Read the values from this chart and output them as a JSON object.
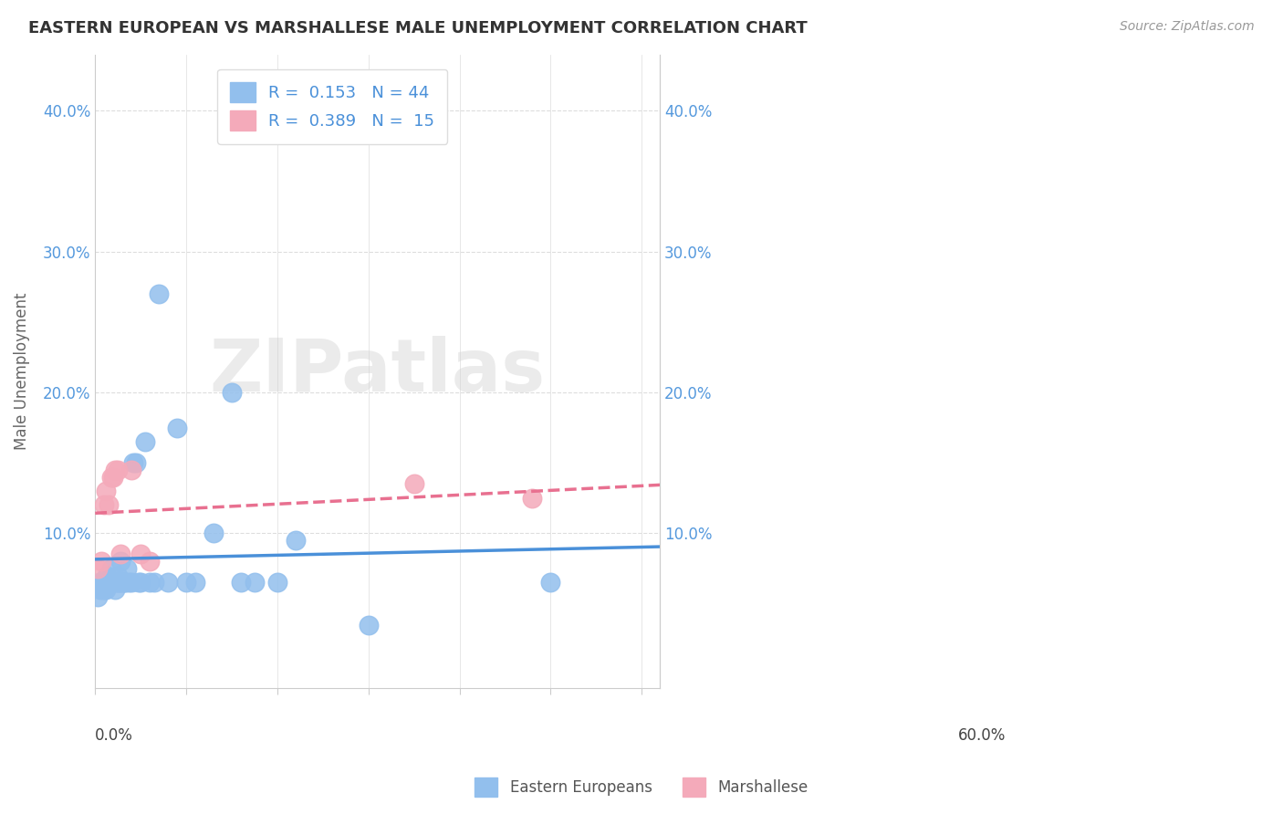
{
  "title": "EASTERN EUROPEAN VS MARSHALLESE MALE UNEMPLOYMENT CORRELATION CHART",
  "source": "Source: ZipAtlas.com",
  "ylabel": "Male Unemployment",
  "xlim": [
    0.0,
    0.62
  ],
  "ylim": [
    -0.01,
    0.44
  ],
  "watermark": "ZIPatlas",
  "eastern_european_color": "#92BFED",
  "marshallese_color": "#F4AABA",
  "trendline_blue": "#4A90D9",
  "trendline_pink": "#E87090",
  "ee_x": [
    0.003,
    0.005,
    0.006,
    0.008,
    0.01,
    0.011,
    0.012,
    0.013,
    0.015,
    0.016,
    0.018,
    0.02,
    0.022,
    0.023,
    0.025,
    0.026,
    0.027,
    0.028,
    0.03,
    0.032,
    0.033,
    0.035,
    0.037,
    0.04,
    0.042,
    0.045,
    0.048,
    0.05,
    0.055,
    0.06,
    0.065,
    0.07,
    0.08,
    0.09,
    0.1,
    0.11,
    0.13,
    0.15,
    0.16,
    0.175,
    0.2,
    0.22,
    0.3,
    0.5
  ],
  "ee_y": [
    0.055,
    0.065,
    0.06,
    0.065,
    0.06,
    0.065,
    0.06,
    0.07,
    0.065,
    0.065,
    0.075,
    0.065,
    0.06,
    0.065,
    0.07,
    0.065,
    0.065,
    0.08,
    0.065,
    0.065,
    0.065,
    0.075,
    0.065,
    0.065,
    0.15,
    0.15,
    0.065,
    0.065,
    0.165,
    0.065,
    0.065,
    0.27,
    0.065,
    0.175,
    0.065,
    0.065,
    0.1,
    0.2,
    0.065,
    0.065,
    0.065,
    0.095,
    0.035,
    0.065
  ],
  "marsh_x": [
    0.003,
    0.007,
    0.01,
    0.012,
    0.015,
    0.018,
    0.02,
    0.022,
    0.025,
    0.028,
    0.04,
    0.05,
    0.06,
    0.35,
    0.48
  ],
  "marsh_y": [
    0.075,
    0.08,
    0.12,
    0.13,
    0.12,
    0.14,
    0.14,
    0.145,
    0.145,
    0.085,
    0.145,
    0.085,
    0.08,
    0.135,
    0.125
  ]
}
